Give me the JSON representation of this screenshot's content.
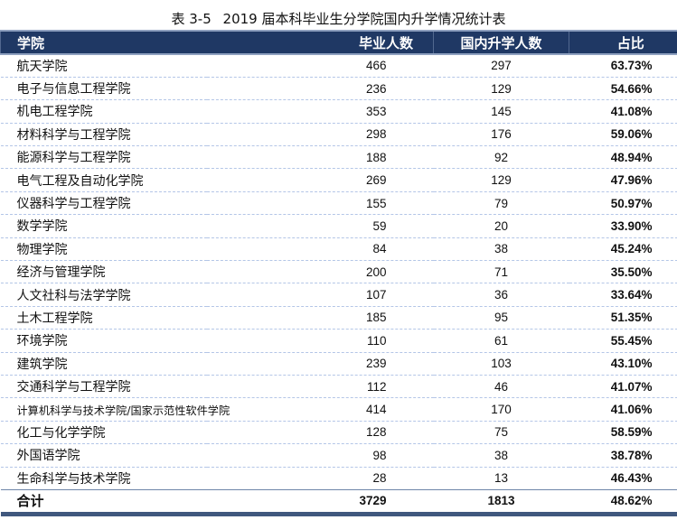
{
  "title": {
    "label": "表 3-5",
    "text": "2019 届本科毕业生分学院国内升学情况统计表"
  },
  "table": {
    "headers": [
      "学院",
      "毕业人数",
      "国内升学人数",
      "占比"
    ],
    "rows": [
      {
        "college": "航天学院",
        "graduates": "466",
        "domestic": "297",
        "ratio": "63.73%"
      },
      {
        "college": "电子与信息工程学院",
        "graduates": "236",
        "domestic": "129",
        "ratio": "54.66%"
      },
      {
        "college": "机电工程学院",
        "graduates": "353",
        "domestic": "145",
        "ratio": "41.08%"
      },
      {
        "college": "材料科学与工程学院",
        "graduates": "298",
        "domestic": "176",
        "ratio": "59.06%"
      },
      {
        "college": "能源科学与工程学院",
        "graduates": "188",
        "domestic": "92",
        "ratio": "48.94%"
      },
      {
        "college": "电气工程及自动化学院",
        "graduates": "269",
        "domestic": "129",
        "ratio": "47.96%"
      },
      {
        "college": "仪器科学与工程学院",
        "graduates": "155",
        "domestic": "79",
        "ratio": "50.97%"
      },
      {
        "college": "数学学院",
        "graduates": "59",
        "domestic": "20",
        "ratio": "33.90%"
      },
      {
        "college": "物理学院",
        "graduates": "84",
        "domestic": "38",
        "ratio": "45.24%"
      },
      {
        "college": "经济与管理学院",
        "graduates": "200",
        "domestic": "71",
        "ratio": "35.50%"
      },
      {
        "college": "人文社科与法学学院",
        "graduates": "107",
        "domestic": "36",
        "ratio": "33.64%"
      },
      {
        "college": "土木工程学院",
        "graduates": "185",
        "domestic": "95",
        "ratio": "51.35%"
      },
      {
        "college": "环境学院",
        "graduates": "110",
        "domestic": "61",
        "ratio": "55.45%"
      },
      {
        "college": "建筑学院",
        "graduates": "239",
        "domestic": "103",
        "ratio": "43.10%"
      },
      {
        "college": "交通科学与工程学院",
        "graduates": "112",
        "domestic": "46",
        "ratio": "41.07%"
      },
      {
        "college": "计算机科学与技术学院/国家示范性软件学院",
        "graduates": "414",
        "domestic": "170",
        "ratio": "41.06%"
      },
      {
        "college": "化工与化学学院",
        "graduates": "128",
        "domestic": "75",
        "ratio": "58.59%"
      },
      {
        "college": "外国语学院",
        "graduates": "98",
        "domestic": "38",
        "ratio": "38.78%"
      },
      {
        "college": "生命科学与技术学院",
        "graduates": "28",
        "domestic": "13",
        "ratio": "46.43%"
      }
    ],
    "total": {
      "college": "合计",
      "graduates": "3729",
      "domestic": "1813",
      "ratio": "48.62%"
    }
  },
  "colors": {
    "header_bg": "#1f3864",
    "header_text": "#ffffff",
    "row_divider": "#b4c6e7",
    "footer_bar": "#40587e"
  }
}
